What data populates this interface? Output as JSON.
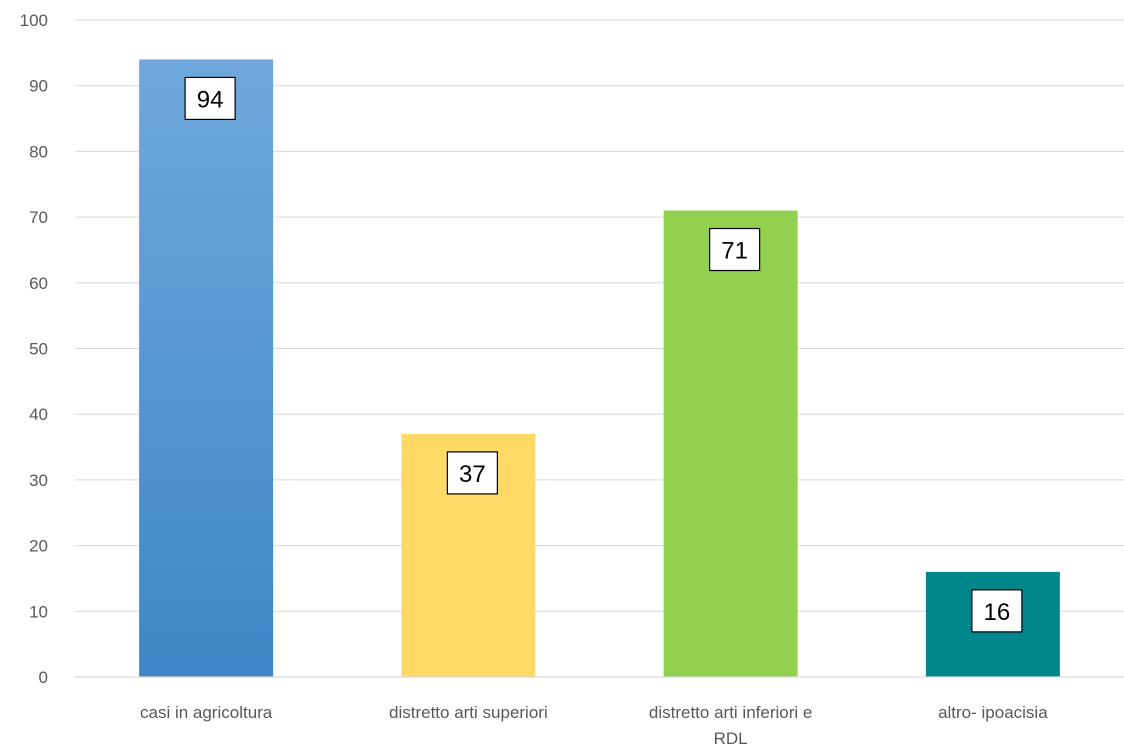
{
  "chart_data": {
    "type": "bar",
    "categories": [
      [
        "casi in agricoltura"
      ],
      [
        "distretto arti superiori"
      ],
      [
        "distretto arti inferiori  e",
        "RDL"
      ],
      [
        "altro- ipoacisia"
      ]
    ],
    "values": [
      94,
      37,
      71,
      16
    ],
    "data_labels": [
      "94",
      "37",
      "71",
      "16"
    ],
    "colors": [
      {
        "top": "#6fa8dc",
        "bottom": "#3f86c6"
      },
      {
        "top": "#ffd966",
        "bottom": "#ffd966"
      },
      {
        "top": "#92d050",
        "bottom": "#92d050"
      },
      {
        "top": "#00868b",
        "bottom": "#00868b"
      }
    ],
    "ylim": [
      0,
      100
    ],
    "yticks": [
      "0",
      "10",
      "20",
      "30",
      "40",
      "50",
      "60",
      "70",
      "80",
      "90",
      "100"
    ],
    "title": "",
    "xlabel": "",
    "ylabel": "",
    "grid": true,
    "legend": "none"
  }
}
